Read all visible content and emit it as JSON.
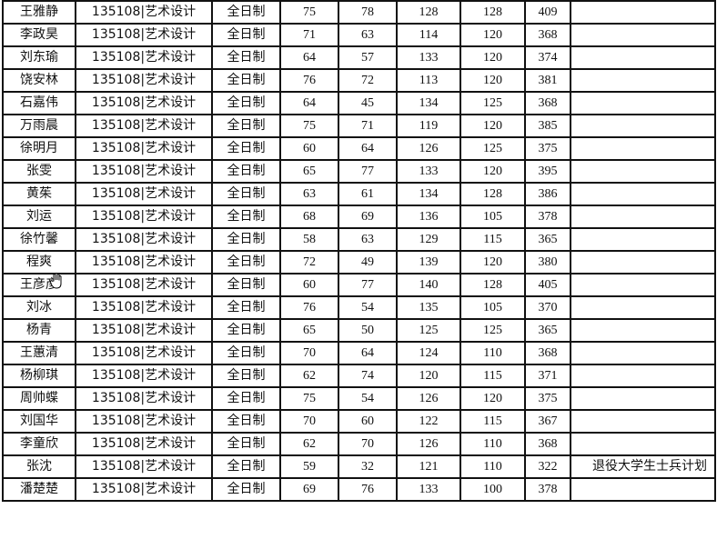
{
  "rows": [
    {
      "name": "王雅静",
      "major": "135108|艺术设计",
      "mode": "全日制",
      "s1": "75",
      "s2": "78",
      "s3": "128",
      "s4": "128",
      "total": "409",
      "note": ""
    },
    {
      "name": "李政昊",
      "major": "135108|艺术设计",
      "mode": "全日制",
      "s1": "71",
      "s2": "63",
      "s3": "114",
      "s4": "120",
      "total": "368",
      "note": ""
    },
    {
      "name": "刘东瑜",
      "major": "135108|艺术设计",
      "mode": "全日制",
      "s1": "64",
      "s2": "57",
      "s3": "133",
      "s4": "120",
      "total": "374",
      "note": ""
    },
    {
      "name": "饶安林",
      "major": "135108|艺术设计",
      "mode": "全日制",
      "s1": "76",
      "s2": "72",
      "s3": "113",
      "s4": "120",
      "total": "381",
      "note": ""
    },
    {
      "name": "石嘉伟",
      "major": "135108|艺术设计",
      "mode": "全日制",
      "s1": "64",
      "s2": "45",
      "s3": "134",
      "s4": "125",
      "total": "368",
      "note": ""
    },
    {
      "name": "万雨晨",
      "major": "135108|艺术设计",
      "mode": "全日制",
      "s1": "75",
      "s2": "71",
      "s3": "119",
      "s4": "120",
      "total": "385",
      "note": ""
    },
    {
      "name": "徐明月",
      "major": "135108|艺术设计",
      "mode": "全日制",
      "s1": "60",
      "s2": "64",
      "s3": "126",
      "s4": "125",
      "total": "375",
      "note": ""
    },
    {
      "name": "张雯",
      "major": "135108|艺术设计",
      "mode": "全日制",
      "s1": "65",
      "s2": "77",
      "s3": "133",
      "s4": "120",
      "total": "395",
      "note": ""
    },
    {
      "name": "黄茱",
      "major": "135108|艺术设计",
      "mode": "全日制",
      "s1": "63",
      "s2": "61",
      "s3": "134",
      "s4": "128",
      "total": "386",
      "note": ""
    },
    {
      "name": "刘运",
      "major": "135108|艺术设计",
      "mode": "全日制",
      "s1": "68",
      "s2": "69",
      "s3": "136",
      "s4": "105",
      "total": "378",
      "note": ""
    },
    {
      "name": "徐竹馨",
      "major": "135108|艺术设计",
      "mode": "全日制",
      "s1": "58",
      "s2": "63",
      "s3": "129",
      "s4": "115",
      "total": "365",
      "note": ""
    },
    {
      "name": "程爽",
      "major": "135108|艺术设计",
      "mode": "全日制",
      "s1": "72",
      "s2": "49",
      "s3": "139",
      "s4": "120",
      "total": "380",
      "note": ""
    },
    {
      "name": "王彦彦",
      "major": "135108|艺术设计",
      "mode": "全日制",
      "s1": "60",
      "s2": "77",
      "s3": "140",
      "s4": "128",
      "total": "405",
      "note": ""
    },
    {
      "name": "刘冰",
      "major": "135108|艺术设计",
      "mode": "全日制",
      "s1": "76",
      "s2": "54",
      "s3": "135",
      "s4": "105",
      "total": "370",
      "note": ""
    },
    {
      "name": "杨青",
      "major": "135108|艺术设计",
      "mode": "全日制",
      "s1": "65",
      "s2": "50",
      "s3": "125",
      "s4": "125",
      "total": "365",
      "note": ""
    },
    {
      "name": "王蕙清",
      "major": "135108|艺术设计",
      "mode": "全日制",
      "s1": "70",
      "s2": "64",
      "s3": "124",
      "s4": "110",
      "total": "368",
      "note": ""
    },
    {
      "name": "杨柳琪",
      "major": "135108|艺术设计",
      "mode": "全日制",
      "s1": "62",
      "s2": "74",
      "s3": "120",
      "s4": "115",
      "total": "371",
      "note": ""
    },
    {
      "name": "周帅蝶",
      "major": "135108|艺术设计",
      "mode": "全日制",
      "s1": "75",
      "s2": "54",
      "s3": "126",
      "s4": "120",
      "total": "375",
      "note": ""
    },
    {
      "name": "刘国华",
      "major": "135108|艺术设计",
      "mode": "全日制",
      "s1": "70",
      "s2": "60",
      "s3": "122",
      "s4": "115",
      "total": "367",
      "note": ""
    },
    {
      "name": "李童欣",
      "major": "135108|艺术设计",
      "mode": "全日制",
      "s1": "62",
      "s2": "70",
      "s3": "126",
      "s4": "110",
      "total": "368",
      "note": ""
    },
    {
      "name": "张沈",
      "major": "135108|艺术设计",
      "mode": "全日制",
      "s1": "59",
      "s2": "32",
      "s3": "121",
      "s4": "110",
      "total": "322",
      "note": "退役大学生士兵计划"
    },
    {
      "name": "潘楚楚",
      "major": "135108|艺术设计",
      "mode": "全日制",
      "s1": "69",
      "s2": "76",
      "s3": "133",
      "s4": "100",
      "total": "378",
      "note": ""
    }
  ]
}
